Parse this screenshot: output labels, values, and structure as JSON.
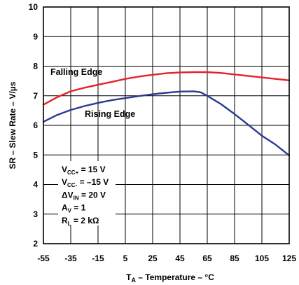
{
  "chart_data": {
    "type": "line",
    "xlabel": {
      "main": "T",
      "sub": "A",
      "rest": " – Temperature – °C"
    },
    "ylabel": "SR – Slew Rate – V/µs",
    "xlim": [
      -55,
      125
    ],
    "ylim": [
      2,
      10
    ],
    "xticks": [
      "-55",
      "-35",
      "-15",
      "5",
      "25",
      "45",
      "65",
      "85",
      "105",
      "125"
    ],
    "yticks": [
      "2",
      "3",
      "4",
      "5",
      "6",
      "7",
      "8",
      "9",
      "10"
    ],
    "grid": true,
    "series": [
      {
        "name": "Falling Edge",
        "color": "#e8202a",
        "x": [
          -55,
          -45,
          -35,
          -25,
          -15,
          -5,
          5,
          15,
          25,
          35,
          45,
          55,
          65,
          75,
          85,
          95,
          105,
          115,
          125
        ],
        "y": [
          6.7,
          6.95,
          7.15,
          7.27,
          7.37,
          7.47,
          7.57,
          7.65,
          7.71,
          7.76,
          7.79,
          7.8,
          7.8,
          7.77,
          7.72,
          7.67,
          7.62,
          7.57,
          7.52
        ]
      },
      {
        "name": "Rising Edge",
        "color": "#2b3a93",
        "x": [
          -55,
          -45,
          -35,
          -25,
          -15,
          -5,
          5,
          15,
          25,
          35,
          45,
          55,
          60,
          65,
          75,
          85,
          95,
          105,
          115,
          125
        ],
        "y": [
          6.12,
          6.35,
          6.52,
          6.65,
          6.76,
          6.85,
          6.92,
          6.99,
          7.05,
          7.1,
          7.14,
          7.15,
          7.12,
          7.0,
          6.72,
          6.38,
          6.02,
          5.65,
          5.35,
          4.98
        ]
      }
    ],
    "conditions": [
      {
        "main": "V",
        "sub": "CC+",
        "rest": " = 15 V"
      },
      {
        "main": "V",
        "sub": "CC-",
        "rest": " = –15 V"
      },
      {
        "main": "ΔV",
        "sub": "IN",
        "rest": " = 20 V"
      },
      {
        "main": "A",
        "sub": "V",
        "rest": " = 1"
      },
      {
        "main": "R",
        "sub": "L",
        "rest": " = 2 kΩ"
      }
    ]
  }
}
